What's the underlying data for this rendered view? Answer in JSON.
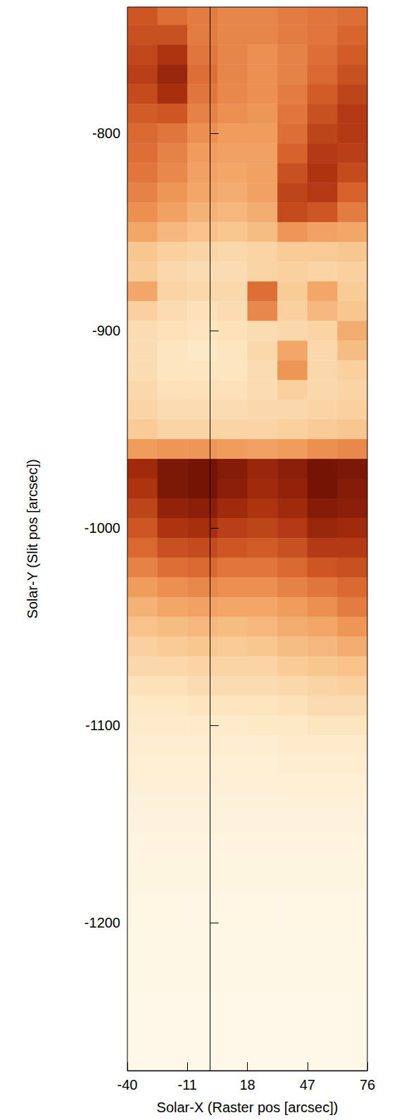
{
  "chart_data": {
    "type": "heatmap",
    "xlabel": "Solar-X (Raster pos [arcsec])",
    "ylabel": "Solar-Y (Slit pos [arcsec])",
    "xlim": [
      -40,
      76
    ],
    "xticks": [
      -40,
      -11,
      18,
      47,
      76
    ],
    "ylim": [
      -1275,
      -736
    ],
    "yticks": [
      -1200,
      -1100,
      -1000,
      -900,
      -800
    ],
    "grid": false,
    "cells": {
      "x_centers": [
        -32.75,
        -18.25,
        -3.75,
        10.75,
        25.25,
        39.75,
        54.25,
        68.75
      ],
      "y_centers": [
        -740,
        -750,
        -760,
        -770,
        -780,
        -790,
        -800,
        -810,
        -820,
        -830,
        -840,
        -850,
        -860,
        -870,
        -880,
        -890,
        -900,
        -910,
        -920,
        -930,
        -940,
        -950,
        -960,
        -970,
        -980,
        -990,
        -1000,
        -1010,
        -1020,
        -1030,
        -1040,
        -1050,
        -1060,
        -1070,
        -1080,
        -1090,
        -1100,
        -1110,
        -1120,
        -1130,
        -1140,
        -1150,
        -1160,
        -1170,
        -1180,
        -1190,
        -1200,
        -1210,
        -1220,
        -1230,
        -1240,
        -1250,
        -1260,
        -1270
      ],
      "zlim": [
        0,
        100
      ],
      "intensity": [
        [
          70,
          62,
          58,
          55,
          55,
          58,
          60,
          62
        ],
        [
          72,
          72,
          58,
          55,
          55,
          58,
          60,
          65
        ],
        [
          75,
          82,
          60,
          55,
          52,
          56,
          62,
          68
        ],
        [
          78,
          88,
          62,
          55,
          52,
          56,
          64,
          72
        ],
        [
          74,
          84,
          60,
          54,
          52,
          58,
          68,
          76
        ],
        [
          68,
          70,
          56,
          52,
          50,
          60,
          72,
          80
        ],
        [
          64,
          60,
          52,
          48,
          48,
          62,
          76,
          80
        ],
        [
          62,
          56,
          48,
          46,
          46,
          66,
          80,
          78
        ],
        [
          60,
          54,
          46,
          44,
          46,
          72,
          82,
          74
        ],
        [
          56,
          50,
          44,
          42,
          46,
          76,
          80,
          66
        ],
        [
          52,
          46,
          40,
          38,
          42,
          74,
          70,
          58
        ],
        [
          44,
          38,
          34,
          32,
          36,
          50,
          46,
          44
        ],
        [
          32,
          28,
          26,
          24,
          26,
          30,
          30,
          32
        ],
        [
          30,
          24,
          22,
          22,
          26,
          28,
          26,
          28
        ],
        [
          44,
          26,
          24,
          24,
          62,
          30,
          44,
          30
        ],
        [
          28,
          22,
          20,
          22,
          54,
          28,
          38,
          32
        ],
        [
          22,
          20,
          18,
          20,
          22,
          24,
          26,
          42
        ],
        [
          22,
          18,
          16,
          18,
          24,
          44,
          24,
          36
        ],
        [
          22,
          18,
          18,
          18,
          22,
          50,
          24,
          28
        ],
        [
          24,
          20,
          20,
          20,
          22,
          28,
          24,
          26
        ],
        [
          26,
          22,
          22,
          22,
          24,
          24,
          26,
          28
        ],
        [
          30,
          26,
          26,
          26,
          26,
          28,
          30,
          32
        ],
        [
          48,
          50,
          50,
          48,
          46,
          48,
          52,
          54
        ],
        [
          86,
          96,
          98,
          94,
          88,
          92,
          98,
          96
        ],
        [
          82,
          96,
          98,
          92,
          86,
          90,
          98,
          94
        ],
        [
          76,
          90,
          92,
          86,
          82,
          86,
          94,
          92
        ],
        [
          70,
          82,
          84,
          78,
          76,
          80,
          88,
          86
        ],
        [
          64,
          72,
          74,
          70,
          68,
          72,
          80,
          80
        ],
        [
          56,
          62,
          64,
          60,
          60,
          64,
          70,
          72
        ],
        [
          48,
          52,
          54,
          52,
          52,
          56,
          60,
          64
        ],
        [
          40,
          44,
          46,
          44,
          44,
          48,
          52,
          58
        ],
        [
          34,
          36,
          38,
          36,
          38,
          42,
          44,
          50
        ],
        [
          28,
          30,
          32,
          30,
          32,
          36,
          38,
          42
        ],
        [
          24,
          24,
          26,
          26,
          26,
          30,
          32,
          34
        ],
        [
          20,
          20,
          22,
          22,
          22,
          24,
          26,
          28
        ],
        [
          16,
          16,
          18,
          18,
          18,
          20,
          22,
          22
        ],
        [
          14,
          14,
          14,
          14,
          16,
          16,
          18,
          18
        ],
        [
          12,
          12,
          12,
          12,
          12,
          14,
          14,
          14
        ],
        [
          10,
          10,
          10,
          10,
          10,
          12,
          12,
          12
        ],
        [
          9,
          9,
          9,
          9,
          9,
          10,
          10,
          10
        ],
        [
          8,
          8,
          8,
          8,
          8,
          8,
          8,
          8
        ],
        [
          7,
          7,
          7,
          7,
          7,
          7,
          7,
          7
        ],
        [
          6,
          6,
          6,
          6,
          6,
          6,
          6,
          6
        ],
        [
          5,
          5,
          5,
          5,
          5,
          5,
          5,
          5
        ],
        [
          5,
          5,
          5,
          5,
          5,
          5,
          5,
          5
        ],
        [
          4,
          4,
          4,
          4,
          4,
          4,
          4,
          4
        ],
        [
          4,
          4,
          4,
          4,
          4,
          4,
          4,
          4
        ],
        [
          3,
          3,
          3,
          3,
          3,
          3,
          3,
          3
        ],
        [
          3,
          3,
          3,
          3,
          3,
          3,
          3,
          3
        ],
        [
          3,
          3,
          3,
          3,
          3,
          3,
          3,
          3
        ],
        [
          2,
          2,
          2,
          2,
          2,
          2,
          2,
          2
        ],
        [
          2,
          2,
          2,
          2,
          2,
          2,
          2,
          2
        ],
        [
          2,
          2,
          2,
          2,
          2,
          2,
          2,
          2
        ],
        [
          2,
          2,
          2,
          2,
          2,
          2,
          2,
          2
        ]
      ]
    }
  }
}
